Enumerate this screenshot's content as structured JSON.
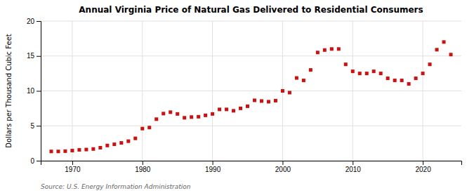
{
  "chart_data": {
    "type": "scatter",
    "title": "Annual Virginia Price of Natural Gas Delivered to Residential Consumers",
    "ylabel": "Dollars per Thousand Cubic Feet",
    "source": "Source: U.S. Energy Information Administration",
    "color": "#cc1111",
    "marker": "square",
    "grid": true,
    "xlim": [
      1965.5,
      2025.5
    ],
    "ylim": [
      0,
      20
    ],
    "yticks": [
      0,
      5,
      10,
      15,
      20
    ],
    "xticks": [
      1970,
      1980,
      1990,
      2000,
      2010,
      2020
    ],
    "x": [
      1967,
      1968,
      1969,
      1970,
      1971,
      1972,
      1973,
      1974,
      1975,
      1976,
      1977,
      1978,
      1979,
      1980,
      1981,
      1982,
      1983,
      1984,
      1985,
      1986,
      1987,
      1988,
      1989,
      1990,
      1991,
      1992,
      1993,
      1994,
      1995,
      1996,
      1997,
      1998,
      1999,
      2000,
      2001,
      2002,
      2003,
      2004,
      2005,
      2006,
      2007,
      2008,
      2009,
      2010,
      2011,
      2012,
      2013,
      2014,
      2015,
      2016,
      2017,
      2018,
      2019,
      2020,
      2021,
      2022,
      2023,
      2024
    ],
    "values": [
      1.33,
      1.33,
      1.37,
      1.45,
      1.55,
      1.6,
      1.68,
      1.86,
      2.18,
      2.35,
      2.55,
      2.8,
      3.2,
      4.6,
      4.75,
      5.95,
      6.75,
      6.95,
      6.7,
      6.15,
      6.25,
      6.3,
      6.5,
      6.7,
      7.35,
      7.35,
      7.15,
      7.5,
      7.8,
      8.65,
      8.55,
      8.45,
      8.6,
      10.0,
      9.75,
      11.85,
      11.5,
      13.0,
      15.5,
      15.85,
      16.0,
      16.0,
      13.8,
      12.8,
      12.5,
      12.5,
      12.8,
      12.5,
      11.8,
      11.5,
      11.5,
      11.0,
      11.8,
      12.5,
      13.8,
      15.9,
      17.0,
      15.2
    ]
  }
}
